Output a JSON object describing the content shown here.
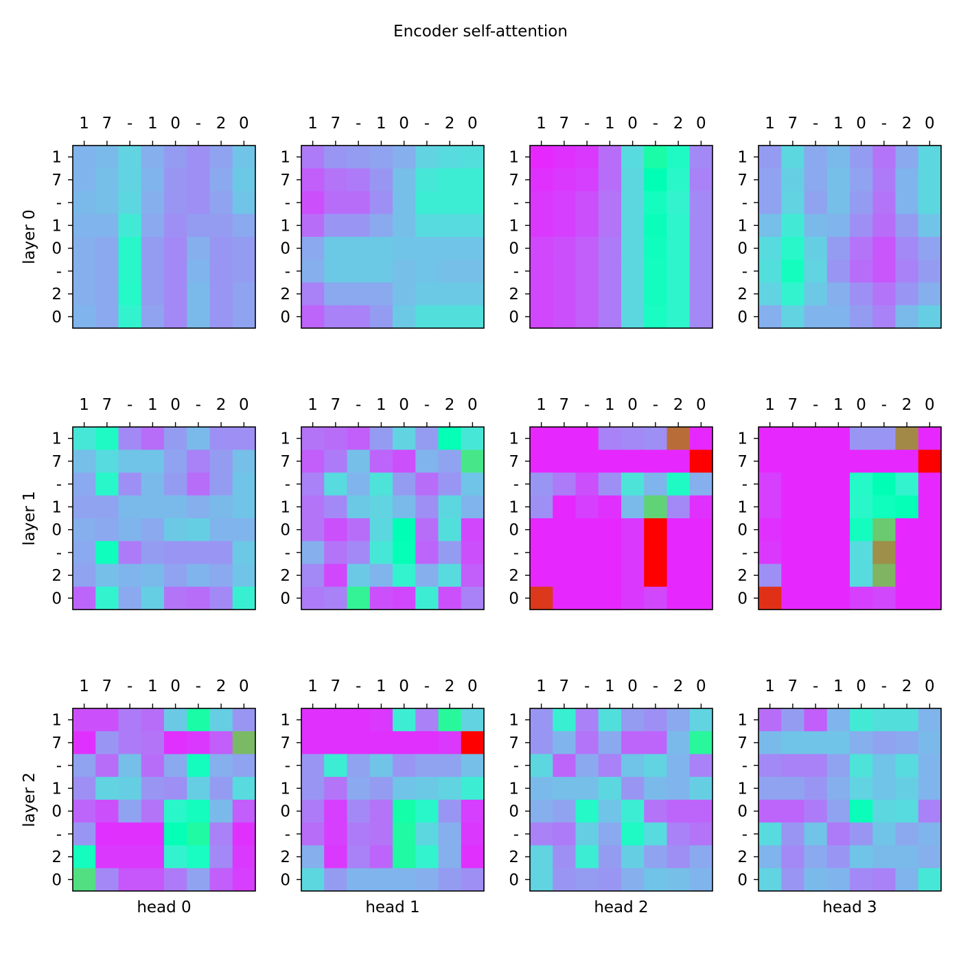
{
  "title": "Encoder self-attention",
  "chart_data": {
    "type": "heatmap",
    "colormap": "rainbow",
    "value_range": [
      0,
      1
    ],
    "title": "Encoder self-attention",
    "tokens": [
      "1",
      "7",
      "-",
      "1",
      "0",
      "-",
      "2",
      "0"
    ],
    "row_labels": [
      "layer 0",
      "layer 1",
      "layer 2"
    ],
    "col_labels": [
      "head 0",
      "head 1",
      "head 2",
      "head 3"
    ],
    "grid": false,
    "panels": [
      [
        [
          [
            0.25,
            0.26,
            0.31,
            0.24,
            0.21,
            0.19,
            0.22,
            0.28
          ],
          [
            0.25,
            0.27,
            0.31,
            0.25,
            0.2,
            0.19,
            0.23,
            0.29
          ],
          [
            0.26,
            0.27,
            0.32,
            0.24,
            0.2,
            0.19,
            0.22,
            0.28
          ],
          [
            0.25,
            0.25,
            0.37,
            0.23,
            0.19,
            0.21,
            0.21,
            0.23
          ],
          [
            0.24,
            0.23,
            0.42,
            0.21,
            0.18,
            0.24,
            0.2,
            0.21
          ],
          [
            0.24,
            0.23,
            0.42,
            0.21,
            0.18,
            0.25,
            0.2,
            0.21
          ],
          [
            0.24,
            0.23,
            0.43,
            0.21,
            0.18,
            0.26,
            0.2,
            0.22
          ],
          [
            0.25,
            0.23,
            0.4,
            0.22,
            0.18,
            0.26,
            0.2,
            0.22
          ]
        ],
        [
          [
            0.16,
            0.2,
            0.21,
            0.22,
            0.24,
            0.31,
            0.33,
            0.34
          ],
          [
            0.12,
            0.15,
            0.16,
            0.2,
            0.27,
            0.36,
            0.38,
            0.38
          ],
          [
            0.1,
            0.14,
            0.14,
            0.19,
            0.27,
            0.38,
            0.38,
            0.38
          ],
          [
            0.14,
            0.2,
            0.2,
            0.23,
            0.27,
            0.33,
            0.33,
            0.33
          ],
          [
            0.23,
            0.29,
            0.29,
            0.29,
            0.28,
            0.28,
            0.28,
            0.28
          ],
          [
            0.24,
            0.29,
            0.29,
            0.29,
            0.27,
            0.28,
            0.27,
            0.27
          ],
          [
            0.17,
            0.23,
            0.23,
            0.23,
            0.27,
            0.29,
            0.29,
            0.29
          ],
          [
            0.13,
            0.17,
            0.17,
            0.21,
            0.29,
            0.34,
            0.34,
            0.34
          ]
        ],
        [
          [
            0.05,
            0.06,
            0.07,
            0.14,
            0.33,
            0.55,
            0.44,
            0.18
          ],
          [
            0.06,
            0.07,
            0.08,
            0.14,
            0.32,
            0.5,
            0.42,
            0.17
          ],
          [
            0.07,
            0.08,
            0.1,
            0.15,
            0.32,
            0.46,
            0.4,
            0.18
          ],
          [
            0.07,
            0.08,
            0.1,
            0.15,
            0.32,
            0.48,
            0.41,
            0.18
          ],
          [
            0.09,
            0.1,
            0.12,
            0.16,
            0.32,
            0.47,
            0.41,
            0.18
          ],
          [
            0.09,
            0.1,
            0.12,
            0.16,
            0.32,
            0.46,
            0.41,
            0.18
          ],
          [
            0.09,
            0.1,
            0.12,
            0.16,
            0.32,
            0.46,
            0.41,
            0.18
          ],
          [
            0.09,
            0.1,
            0.12,
            0.16,
            0.32,
            0.45,
            0.41,
            0.18
          ]
        ],
        [
          [
            0.21,
            0.32,
            0.23,
            0.26,
            0.21,
            0.15,
            0.23,
            0.32
          ],
          [
            0.22,
            0.3,
            0.23,
            0.27,
            0.22,
            0.16,
            0.25,
            0.32
          ],
          [
            0.22,
            0.31,
            0.22,
            0.27,
            0.21,
            0.15,
            0.25,
            0.32
          ],
          [
            0.27,
            0.37,
            0.26,
            0.25,
            0.19,
            0.14,
            0.21,
            0.28
          ],
          [
            0.33,
            0.42,
            0.3,
            0.21,
            0.15,
            0.11,
            0.18,
            0.22
          ],
          [
            0.34,
            0.46,
            0.31,
            0.2,
            0.14,
            0.11,
            0.17,
            0.21
          ],
          [
            0.31,
            0.4,
            0.29,
            0.24,
            0.19,
            0.15,
            0.2,
            0.24
          ],
          [
            0.24,
            0.31,
            0.25,
            0.25,
            0.21,
            0.17,
            0.26,
            0.3
          ]
        ]
      ],
      [
        [
          [
            0.36,
            0.44,
            0.18,
            0.14,
            0.21,
            0.26,
            0.19,
            0.19
          ],
          [
            0.27,
            0.33,
            0.28,
            0.28,
            0.22,
            0.17,
            0.21,
            0.27
          ],
          [
            0.23,
            0.42,
            0.19,
            0.26,
            0.21,
            0.14,
            0.21,
            0.28
          ],
          [
            0.22,
            0.22,
            0.26,
            0.26,
            0.26,
            0.24,
            0.26,
            0.28
          ],
          [
            0.24,
            0.23,
            0.25,
            0.23,
            0.29,
            0.3,
            0.25,
            0.25
          ],
          [
            0.23,
            0.47,
            0.16,
            0.21,
            0.2,
            0.2,
            0.2,
            0.29
          ],
          [
            0.22,
            0.27,
            0.25,
            0.26,
            0.22,
            0.25,
            0.23,
            0.28
          ],
          [
            0.13,
            0.4,
            0.23,
            0.3,
            0.15,
            0.14,
            0.18,
            0.39
          ]
        ],
        [
          [
            0.15,
            0.14,
            0.12,
            0.21,
            0.31,
            0.21,
            0.49,
            0.36
          ],
          [
            0.12,
            0.16,
            0.27,
            0.13,
            0.1,
            0.25,
            0.22,
            0.64
          ],
          [
            0.17,
            0.33,
            0.25,
            0.35,
            0.21,
            0.14,
            0.2,
            0.28
          ],
          [
            0.15,
            0.18,
            0.29,
            0.31,
            0.26,
            0.19,
            0.32,
            0.25
          ],
          [
            0.15,
            0.1,
            0.14,
            0.32,
            0.5,
            0.14,
            0.34,
            0.09
          ],
          [
            0.24,
            0.15,
            0.18,
            0.36,
            0.49,
            0.13,
            0.21,
            0.1
          ],
          [
            0.18,
            0.09,
            0.29,
            0.25,
            0.4,
            0.24,
            0.33,
            0.12
          ],
          [
            0.16,
            0.17,
            0.6,
            0.1,
            0.09,
            0.38,
            0.1,
            0.17
          ]
        ],
        [
          [
            0.05,
            0.05,
            0.05,
            0.17,
            0.18,
            0.19,
            0.86,
            0.05
          ],
          [
            0.05,
            0.05,
            0.05,
            0.05,
            0.05,
            0.05,
            0.05,
            1.0
          ],
          [
            0.2,
            0.16,
            0.1,
            0.19,
            0.35,
            0.25,
            0.44,
            0.24
          ],
          [
            0.19,
            0.05,
            0.08,
            0.06,
            0.26,
            0.69,
            0.18,
            0.06
          ],
          [
            0.05,
            0.05,
            0.05,
            0.05,
            0.07,
            1.0,
            0.05,
            0.05
          ],
          [
            0.05,
            0.05,
            0.05,
            0.05,
            0.07,
            1.0,
            0.05,
            0.05
          ],
          [
            0.05,
            0.05,
            0.05,
            0.05,
            0.07,
            1.0,
            0.05,
            0.05
          ],
          [
            0.93,
            0.05,
            0.05,
            0.05,
            0.07,
            0.09,
            0.05,
            0.05
          ]
        ],
        [
          [
            0.05,
            0.05,
            0.05,
            0.05,
            0.2,
            0.2,
            0.82,
            0.05
          ],
          [
            0.05,
            0.05,
            0.05,
            0.05,
            0.05,
            0.05,
            0.05,
            1.0
          ],
          [
            0.08,
            0.05,
            0.05,
            0.05,
            0.43,
            0.5,
            0.4,
            0.05
          ],
          [
            0.08,
            0.05,
            0.05,
            0.05,
            0.42,
            0.47,
            0.49,
            0.05
          ],
          [
            0.06,
            0.05,
            0.05,
            0.05,
            0.46,
            0.71,
            0.05,
            0.05
          ],
          [
            0.07,
            0.05,
            0.05,
            0.05,
            0.33,
            0.81,
            0.05,
            0.05
          ],
          [
            0.19,
            0.05,
            0.05,
            0.05,
            0.33,
            0.75,
            0.05,
            0.05
          ],
          [
            0.94,
            0.05,
            0.05,
            0.05,
            0.08,
            0.09,
            0.05,
            0.05
          ]
        ]
      ],
      [
        [
          [
            0.1,
            0.1,
            0.16,
            0.14,
            0.29,
            0.55,
            0.3,
            0.2
          ],
          [
            0.06,
            0.2,
            0.16,
            0.15,
            0.06,
            0.07,
            0.12,
            0.74
          ],
          [
            0.22,
            0.14,
            0.27,
            0.14,
            0.23,
            0.46,
            0.24,
            0.22
          ],
          [
            0.19,
            0.31,
            0.3,
            0.2,
            0.19,
            0.3,
            0.21,
            0.33
          ],
          [
            0.13,
            0.1,
            0.22,
            0.15,
            0.42,
            0.46,
            0.26,
            0.12
          ],
          [
            0.2,
            0.06,
            0.06,
            0.06,
            0.49,
            0.56,
            0.17,
            0.06
          ],
          [
            0.46,
            0.07,
            0.07,
            0.07,
            0.4,
            0.45,
            0.18,
            0.07
          ],
          [
            0.66,
            0.18,
            0.11,
            0.11,
            0.16,
            0.22,
            0.12,
            0.08
          ]
        ],
        [
          [
            0.06,
            0.06,
            0.06,
            0.07,
            0.38,
            0.17,
            0.58,
            0.31
          ],
          [
            0.06,
            0.06,
            0.06,
            0.06,
            0.06,
            0.06,
            0.07,
            1.0
          ],
          [
            0.2,
            0.38,
            0.22,
            0.28,
            0.2,
            0.22,
            0.22,
            0.27
          ],
          [
            0.2,
            0.15,
            0.23,
            0.21,
            0.28,
            0.29,
            0.31,
            0.38
          ],
          [
            0.16,
            0.08,
            0.18,
            0.15,
            0.54,
            0.42,
            0.2,
            0.08
          ],
          [
            0.14,
            0.08,
            0.16,
            0.15,
            0.56,
            0.32,
            0.24,
            0.07
          ],
          [
            0.24,
            0.07,
            0.17,
            0.13,
            0.56,
            0.4,
            0.24,
            0.06
          ],
          [
            0.32,
            0.21,
            0.25,
            0.25,
            0.25,
            0.24,
            0.21,
            0.19
          ]
        ],
        [
          [
            0.2,
            0.39,
            0.17,
            0.34,
            0.21,
            0.19,
            0.23,
            0.31
          ],
          [
            0.2,
            0.25,
            0.15,
            0.23,
            0.13,
            0.13,
            0.26,
            0.58
          ],
          [
            0.32,
            0.13,
            0.23,
            0.17,
            0.28,
            0.31,
            0.25,
            0.17
          ],
          [
            0.26,
            0.27,
            0.27,
            0.32,
            0.2,
            0.26,
            0.25,
            0.3
          ],
          [
            0.24,
            0.22,
            0.43,
            0.28,
            0.38,
            0.15,
            0.13,
            0.13
          ],
          [
            0.17,
            0.16,
            0.3,
            0.23,
            0.44,
            0.33,
            0.17,
            0.15
          ],
          [
            0.31,
            0.19,
            0.38,
            0.21,
            0.3,
            0.22,
            0.19,
            0.23
          ],
          [
            0.31,
            0.2,
            0.21,
            0.2,
            0.24,
            0.28,
            0.27,
            0.25
          ]
        ],
        [
          [
            0.14,
            0.21,
            0.12,
            0.25,
            0.37,
            0.34,
            0.34,
            0.25
          ],
          [
            0.26,
            0.28,
            0.28,
            0.28,
            0.24,
            0.22,
            0.23,
            0.26
          ],
          [
            0.18,
            0.17,
            0.17,
            0.22,
            0.35,
            0.28,
            0.33,
            0.25
          ],
          [
            0.22,
            0.22,
            0.2,
            0.24,
            0.31,
            0.28,
            0.3,
            0.25
          ],
          [
            0.13,
            0.13,
            0.16,
            0.22,
            0.48,
            0.32,
            0.33,
            0.17
          ],
          [
            0.33,
            0.2,
            0.28,
            0.16,
            0.2,
            0.28,
            0.23,
            0.25
          ],
          [
            0.25,
            0.18,
            0.23,
            0.2,
            0.28,
            0.26,
            0.26,
            0.24
          ],
          [
            0.31,
            0.2,
            0.26,
            0.25,
            0.18,
            0.17,
            0.25,
            0.36
          ]
        ]
      ]
    ]
  }
}
